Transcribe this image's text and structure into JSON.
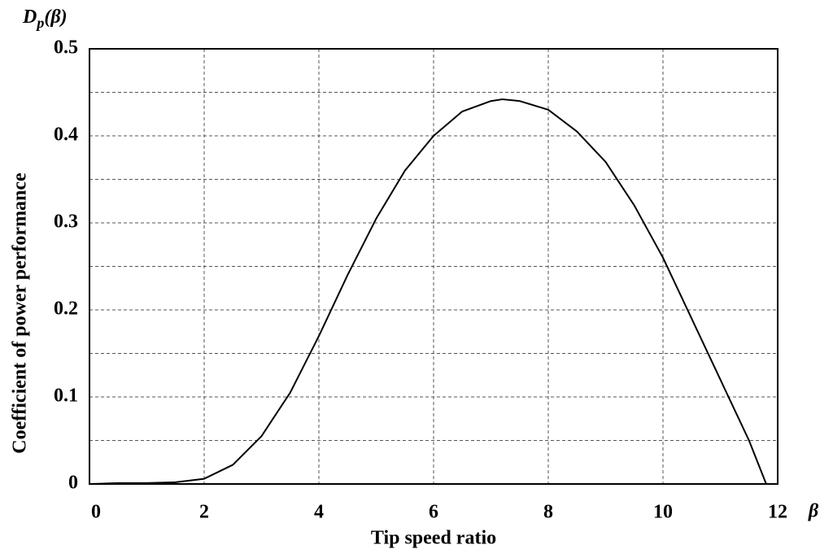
{
  "chart_data": {
    "type": "line",
    "y_symbol": {
      "base": "D",
      "sub": "p",
      "arg": "(β)"
    },
    "x_symbol": "β",
    "xlabel": "Tip speed ratio",
    "ylabel": "Coefficient of power performance",
    "x": [
      0,
      0.5,
      1,
      1.5,
      2,
      2.5,
      3,
      3.5,
      4,
      4.5,
      5,
      5.5,
      6,
      6.5,
      7,
      7.2,
      7.5,
      8,
      8.5,
      9,
      9.5,
      10,
      10.5,
      11,
      11.5,
      11.8
    ],
    "series": [
      {
        "name": "Dp(β)",
        "color": "#000000",
        "values": [
          0,
          0.001,
          0.001,
          0.002,
          0.006,
          0.022,
          0.055,
          0.105,
          0.17,
          0.24,
          0.305,
          0.36,
          0.4,
          0.428,
          0.44,
          0.442,
          0.44,
          0.43,
          0.405,
          0.37,
          0.32,
          0.26,
          0.19,
          0.12,
          0.05,
          0
        ]
      }
    ],
    "xlim": [
      0,
      12
    ],
    "xticks": [
      0,
      2,
      4,
      6,
      8,
      10,
      12
    ],
    "ylim": [
      0,
      0.5
    ],
    "yticks": [
      0,
      0.1,
      0.2,
      0.3,
      0.4,
      0.5
    ],
    "y_minor_grid": [
      0.05,
      0.15,
      0.25,
      0.35,
      0.45
    ],
    "grid": true
  }
}
